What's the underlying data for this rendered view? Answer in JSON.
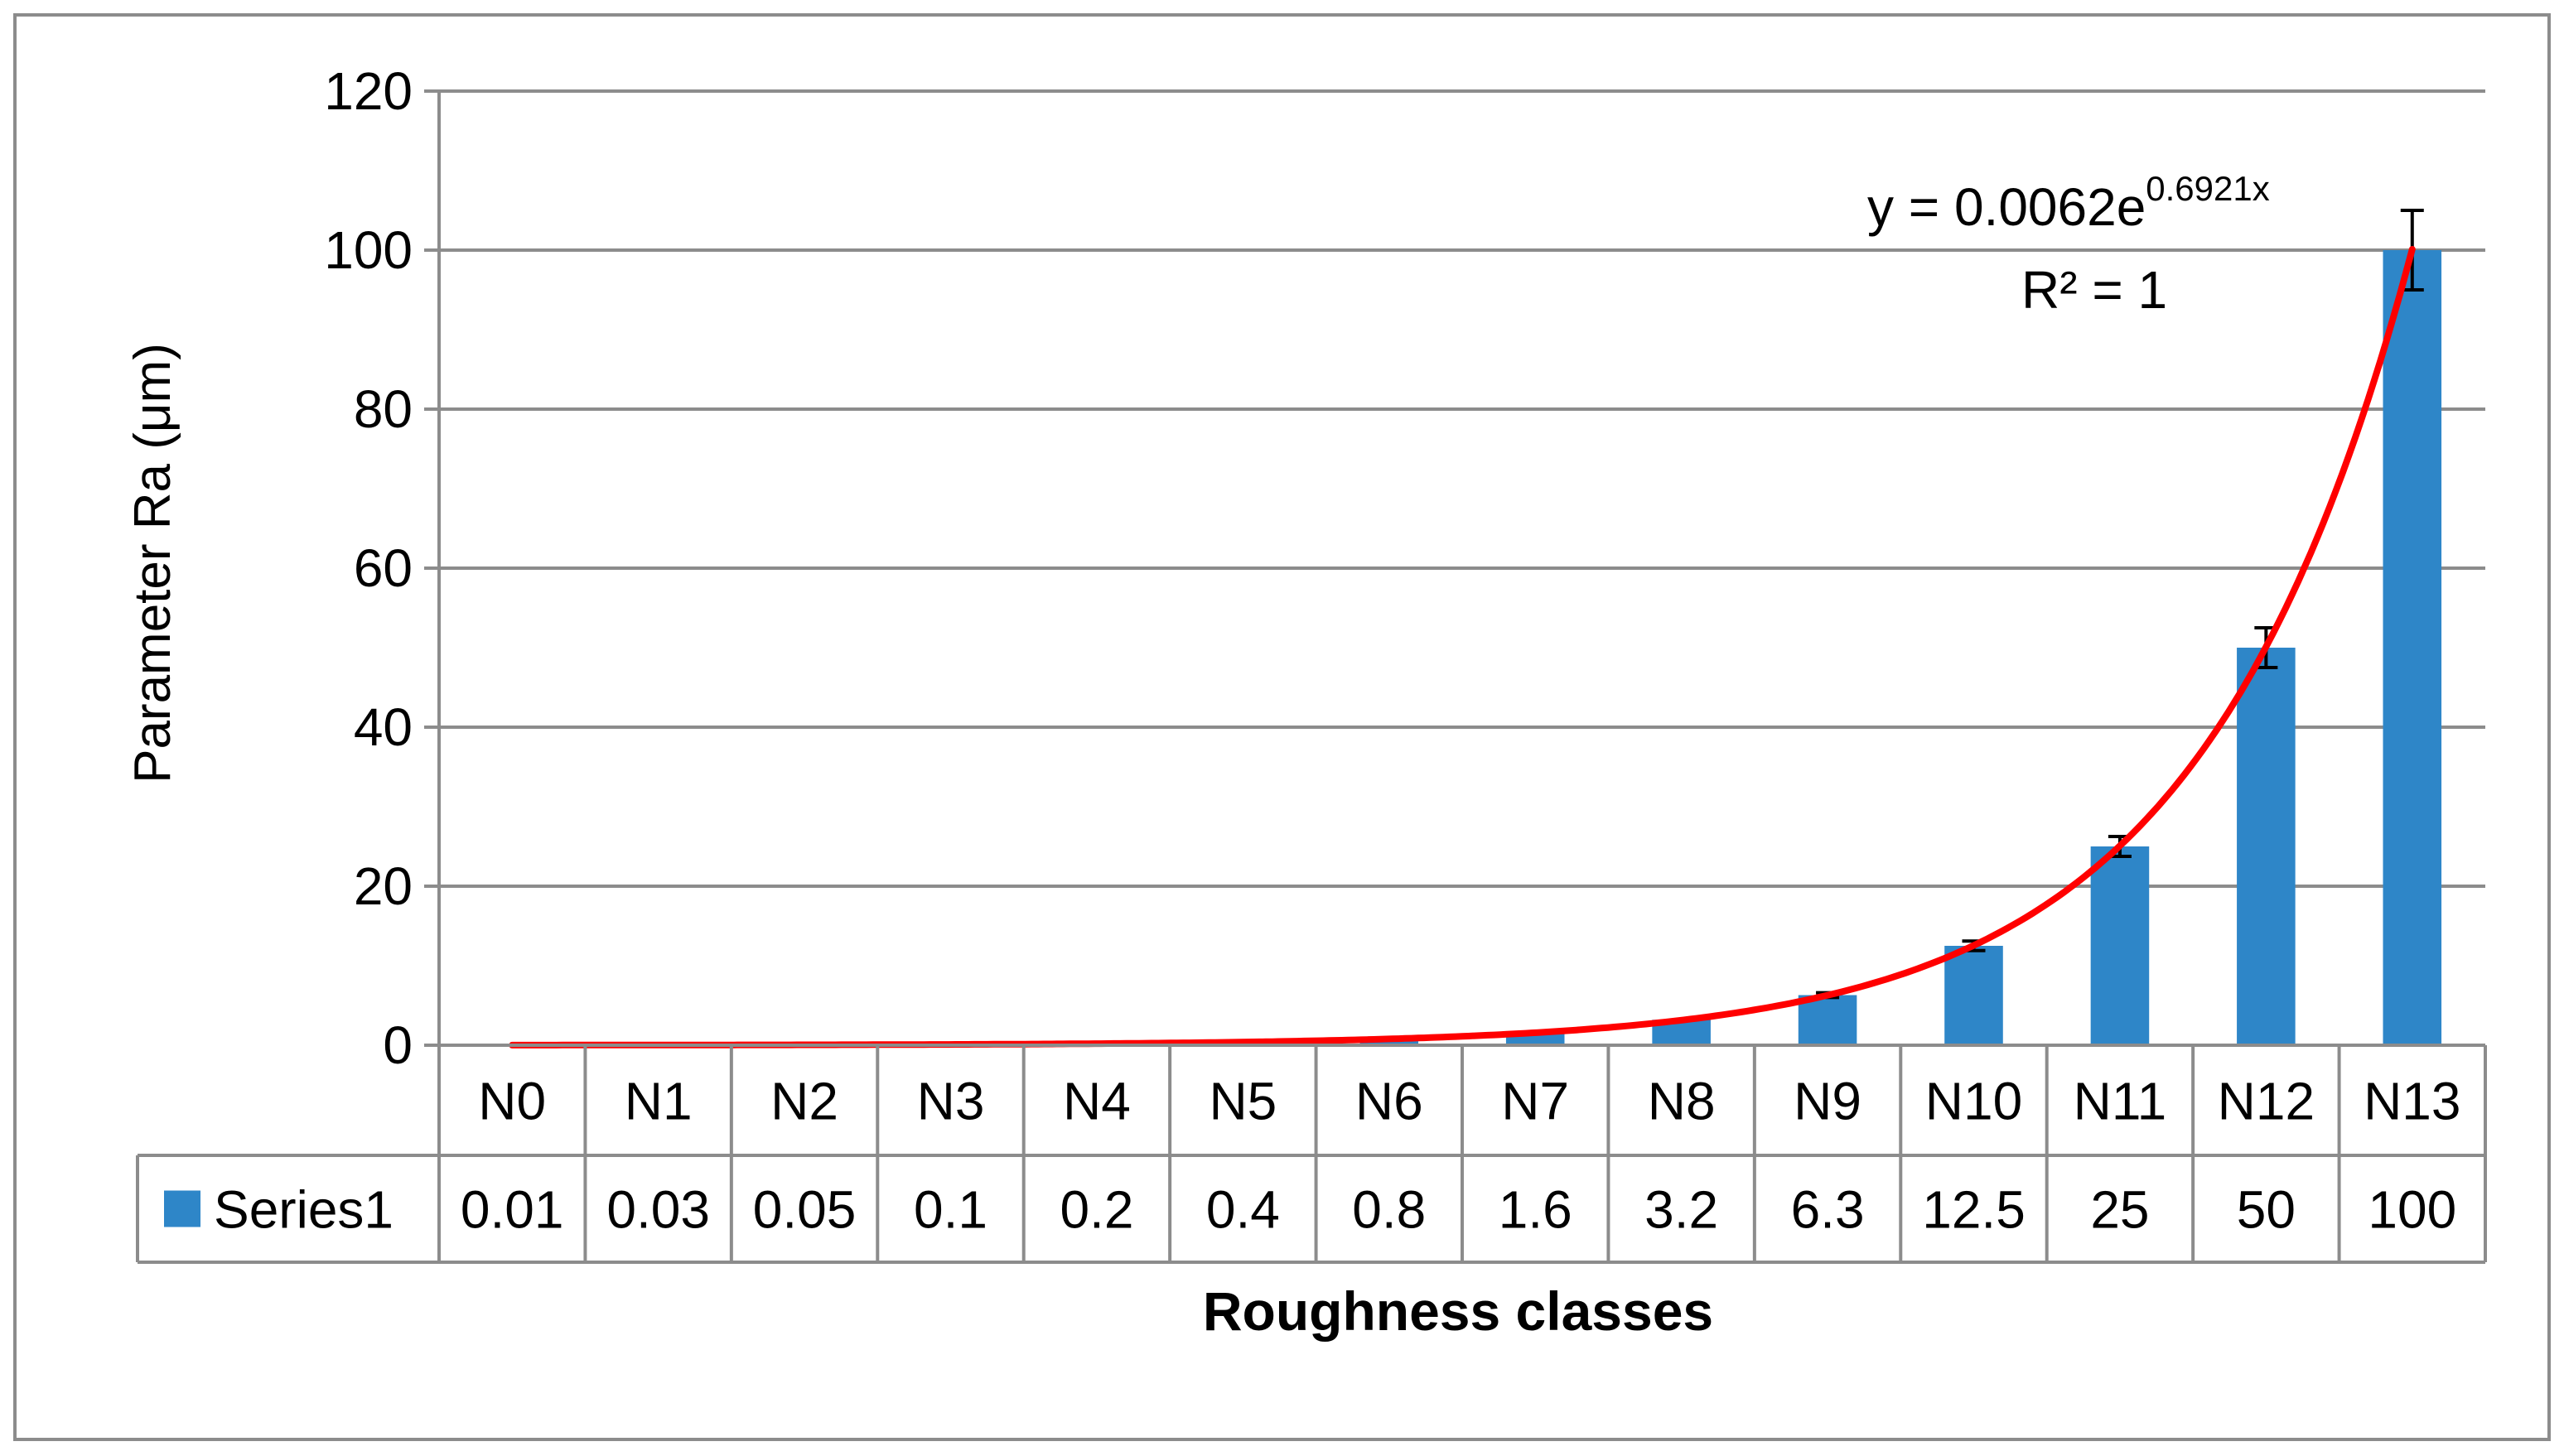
{
  "chart_data": {
    "type": "bar",
    "categories": [
      "N0",
      "N1",
      "N2",
      "N3",
      "N4",
      "N5",
      "N6",
      "N7",
      "N8",
      "N9",
      "N10",
      "N11",
      "N12",
      "N13"
    ],
    "series": [
      {
        "name": "Series1",
        "values": [
          0.01,
          0.03,
          0.05,
          0.1,
          0.2,
          0.4,
          0.8,
          1.6,
          3.2,
          6.3,
          12.5,
          25,
          50,
          100
        ],
        "value_labels": [
          "0.01",
          "0.03",
          "0.05",
          "0.1",
          "0.2",
          "0.4",
          "0.8",
          "1.6",
          "3.2",
          "6.3",
          "12.5",
          "25",
          "50",
          "100"
        ],
        "error_bars": [
          0,
          0,
          0,
          0,
          0,
          0,
          0,
          0,
          0,
          0.3,
          0.6,
          1.25,
          2.5,
          5
        ],
        "color": "#2E86C8"
      }
    ],
    "trendline": {
      "type": "exponential",
      "a": 0.0062,
      "b": 0.6921,
      "color": "#FF0000",
      "equation_prefix": "y = 0.0062e",
      "equation_exponent": "0.6921x",
      "r2_label": "R² = 1"
    },
    "xlabel": "Roughness classes",
    "ylabel": "Parameter  Ra (μm)",
    "ylim": [
      0,
      120
    ],
    "yticks": [
      0,
      20,
      40,
      60,
      80,
      100,
      120
    ],
    "grid": true,
    "legend": "data-table"
  }
}
